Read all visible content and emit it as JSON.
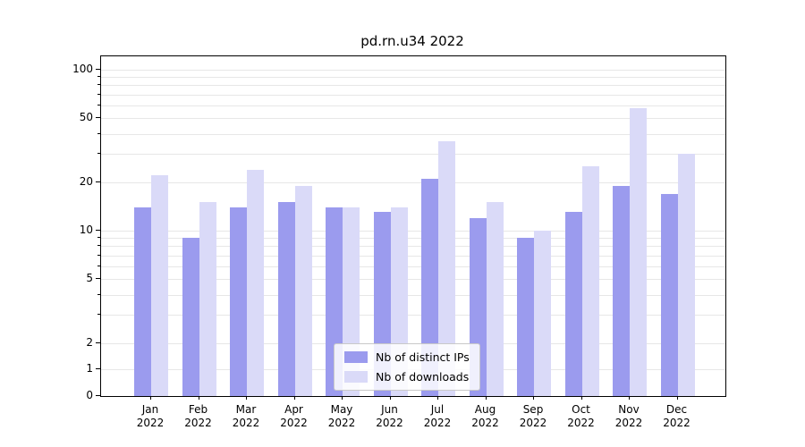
{
  "chart_data": {
    "type": "bar",
    "title": "pd.rn.u34 2022",
    "year_label": "2022",
    "categories": [
      "Jan",
      "Feb",
      "Mar",
      "Apr",
      "May",
      "Jun",
      "Jul",
      "Aug",
      "Sep",
      "Oct",
      "Nov",
      "Dec"
    ],
    "series": [
      {
        "name": "Nb of distinct IPs",
        "color": "#9b9bee",
        "values": [
          14,
          9,
          14,
          15,
          14,
          13,
          21,
          12,
          9,
          13,
          19,
          17
        ]
      },
      {
        "name": "Nb of downloads",
        "color": "#dadaf8",
        "values": [
          22,
          15,
          24,
          19,
          14,
          14,
          36,
          15,
          10,
          25,
          58,
          30
        ]
      }
    ],
    "yscale": "symlog",
    "yticks": [
      0,
      1,
      2,
      5,
      10,
      20,
      50,
      100
    ],
    "ylim": [
      0,
      120
    ],
    "grid": true,
    "legend_position": "lower center",
    "colors": {
      "grid": "#e7e7e7",
      "axis": "#000000",
      "background": "#ffffff"
    }
  }
}
